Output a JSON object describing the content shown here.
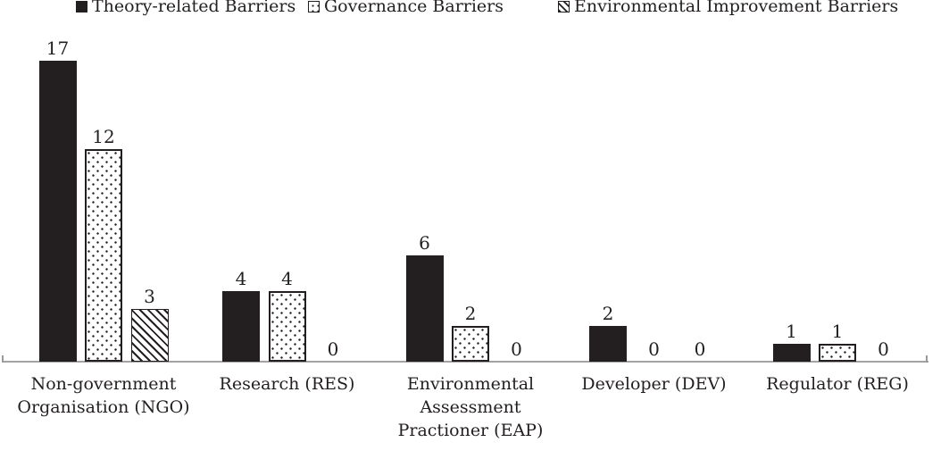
{
  "chart_data": {
    "type": "bar",
    "title": "",
    "xlabel": "",
    "ylabel": "",
    "ylim": [
      0,
      17
    ],
    "gridlines": false,
    "legend_position": "top",
    "value_labels": true,
    "categories": [
      "Non-government\nOrganisation (NGO)",
      "Research (RES)",
      "Environmental\nAssessment\nPractioner (EAP)",
      "Developer (DEV)",
      "Regulator (REG)"
    ],
    "series": [
      {
        "name": "Theory-related Barriers",
        "pattern": "solid",
        "values": [
          17,
          4,
          6,
          2,
          1
        ]
      },
      {
        "name": "Governance Barriers",
        "pattern": "dots",
        "values": [
          12,
          4,
          2,
          0,
          1
        ]
      },
      {
        "name": "Environmental Improvement Barriers",
        "pattern": "diagonal-hatch",
        "values": [
          3,
          0,
          0,
          0,
          0
        ]
      }
    ],
    "colors": {
      "bar_black": "#231f20",
      "pattern_background": "#ffffff",
      "axis_line": "#a3a3a3",
      "text": "#231f20",
      "background": "#ffffff"
    }
  }
}
